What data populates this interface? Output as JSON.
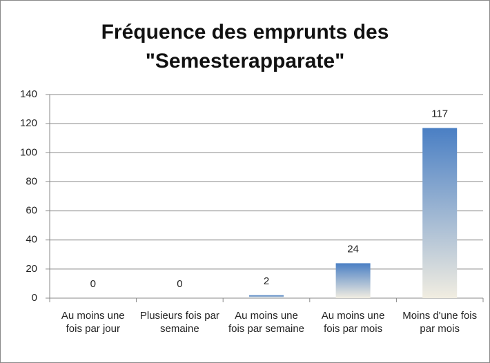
{
  "chart_data": {
    "type": "bar",
    "title": "Fréquence des emprunts des \"Semesterapparate\"",
    "categories": [
      "Au moins une fois par jour",
      "Plusieurs fois par semaine",
      "Au moins une fois par semaine",
      "Au moins une fois par mois",
      "Moins d'une fois par mois"
    ],
    "values": [
      0,
      0,
      2,
      24,
      117
    ],
    "color": "#4a7fc4",
    "ylim": [
      0,
      140
    ],
    "yticks": [
      0,
      20,
      40,
      60,
      80,
      100,
      120,
      140
    ],
    "grid": true
  }
}
